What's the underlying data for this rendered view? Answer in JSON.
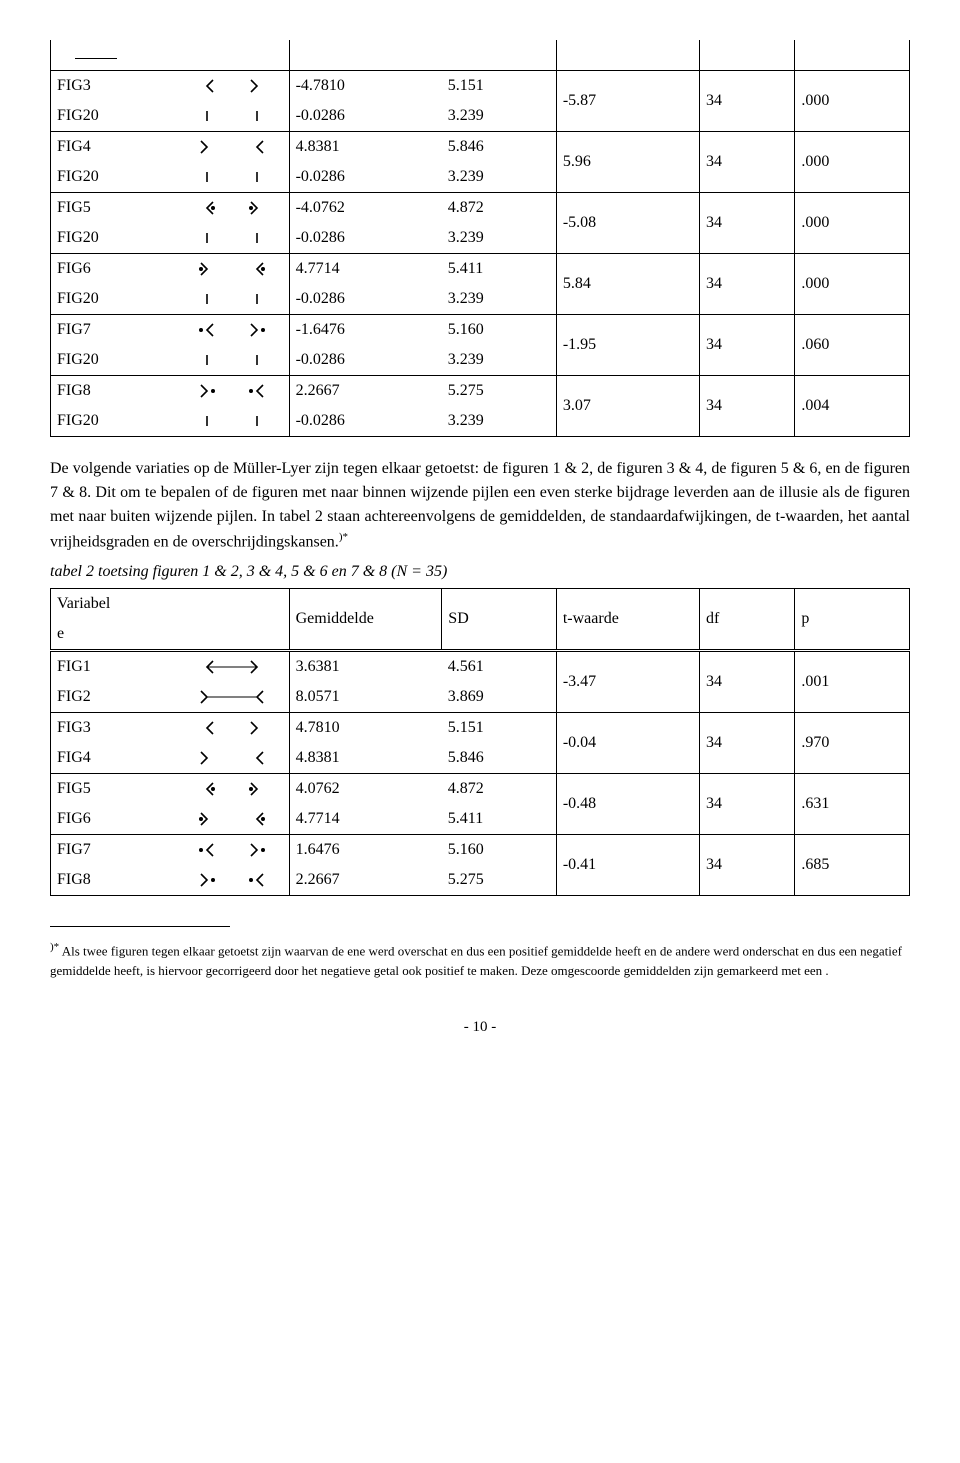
{
  "text": {
    "para1": "De volgende variaties op de Müller-Lyer zijn tegen elkaar getoetst: de figuren 1 & 2, de figuren 3 & 4, de figuren 5 & 6, en de figuren 7 & 8. Dit om te bepalen of de figuren met naar binnen wijzende pijlen een even sterke bijdrage leverden aan de illusie als de figuren met naar buiten wijzende pijlen. In tabel 2 staan achtereenvolgens de gemiddelden, de standaardafwijkingen, de t-waarden, het aantal vrijheidsgraden en de overschrijdingskansen.",
    "sup_marker": ")*",
    "caption2": "tabel 2  toetsing figuren 1 & 2, 3 & 4, 5 & 6 en 7 & 8  (N = 35)",
    "footnote": " Als twee figuren tegen elkaar getoetst zijn waarvan de ene werd overschat en dus een positief gemiddelde heeft en de andere werd onderschat en dus een negatief gemiddelde heeft, is hiervoor gecorrigeerd door het negatieve getal ook positief te maken. Deze omgescoorde gemiddelden zijn gemarkeerd met een  .",
    "page_num": "- 10 -"
  },
  "headers": {
    "var": "Variabele",
    "gem": "Gemiddelde",
    "sd": "SD",
    "t": "t-waarde",
    "df": "df",
    "p": "p"
  },
  "icon": {
    "stroke": "#000000",
    "stroke_width": 1.6,
    "line_width": 1.0,
    "width": 78,
    "height": 22
  },
  "table1": {
    "rows": [
      {
        "labels": [
          "FIG3",
          "FIG20"
        ],
        "icons": [
          "in-out",
          "parallel"
        ],
        "gem": [
          "-4.7810",
          "-0.0286"
        ],
        "sd": [
          "5.151",
          "3.239"
        ],
        "t": "-5.87",
        "df": "34",
        "p": ".000"
      },
      {
        "labels": [
          "FIG4",
          "FIG20"
        ],
        "icons": [
          "out-in",
          "parallel"
        ],
        "gem": [
          "4.8381",
          "-0.0286"
        ],
        "sd": [
          "5.846",
          "3.239"
        ],
        "t": "5.96",
        "df": "34",
        "p": ".000"
      },
      {
        "labels": [
          "FIG5",
          "FIG20"
        ],
        "icons": [
          "eye-in-out",
          "parallel"
        ],
        "gem": [
          "-4.0762",
          "-0.0286"
        ],
        "sd": [
          "4.872",
          "3.239"
        ],
        "t": "-5.08",
        "df": "34",
        "p": ".000"
      },
      {
        "labels": [
          "FIG6",
          "FIG20"
        ],
        "icons": [
          "eye-out-in",
          "parallel"
        ],
        "gem": [
          "4.7714",
          "-0.0286"
        ],
        "sd": [
          "5.411",
          "3.239"
        ],
        "t": "5.84",
        "df": "34",
        "p": ".000"
      },
      {
        "labels": [
          "FIG7",
          "FIG20"
        ],
        "icons": [
          "dot-in-out",
          "parallel"
        ],
        "gem": [
          "-1.6476",
          "-0.0286"
        ],
        "sd": [
          "5.160",
          "3.239"
        ],
        "t": "-1.95",
        "df": "34",
        "p": ".060"
      },
      {
        "labels": [
          "FIG8",
          "FIG20"
        ],
        "icons": [
          "dot-out-in",
          "parallel"
        ],
        "gem": [
          "2.2667",
          "-0.0286"
        ],
        "sd": [
          "5.275",
          "3.239"
        ],
        "t": "3.07",
        "df": "34",
        "p": ".004"
      }
    ]
  },
  "table2": {
    "rows": [
      {
        "labels": [
          "FIG1",
          "FIG2"
        ],
        "icons": [
          "line-in-out",
          "line-out-in"
        ],
        "gem": [
          "3.6381",
          "8.0571"
        ],
        "sd": [
          "4.561",
          "3.869"
        ],
        "t": "-3.47",
        "df": "34",
        "p": ".001"
      },
      {
        "labels": [
          "FIG3",
          "FIG4"
        ],
        "icons": [
          "in-out",
          "out-in"
        ],
        "gem": [
          "4.7810",
          "4.8381"
        ],
        "sd": [
          "5.151",
          "5.846"
        ],
        "t": "-0.04",
        "df": "34",
        "p": ".970"
      },
      {
        "labels": [
          "FIG5",
          "FIG6"
        ],
        "icons": [
          "eye-in-out",
          "eye-out-in"
        ],
        "gem": [
          "4.0762",
          "4.7714"
        ],
        "sd": [
          "4.872",
          "5.411"
        ],
        "t": "-0.48",
        "df": "34",
        "p": ".631"
      },
      {
        "labels": [
          "FIG7",
          "FIG8"
        ],
        "icons": [
          "dot-in-out",
          "dot-out-in"
        ],
        "gem": [
          "1.6476",
          "2.2667"
        ],
        "sd": [
          "5.160",
          "5.275"
        ],
        "t": "-0.41",
        "df": "34",
        "p": ".685"
      }
    ]
  }
}
